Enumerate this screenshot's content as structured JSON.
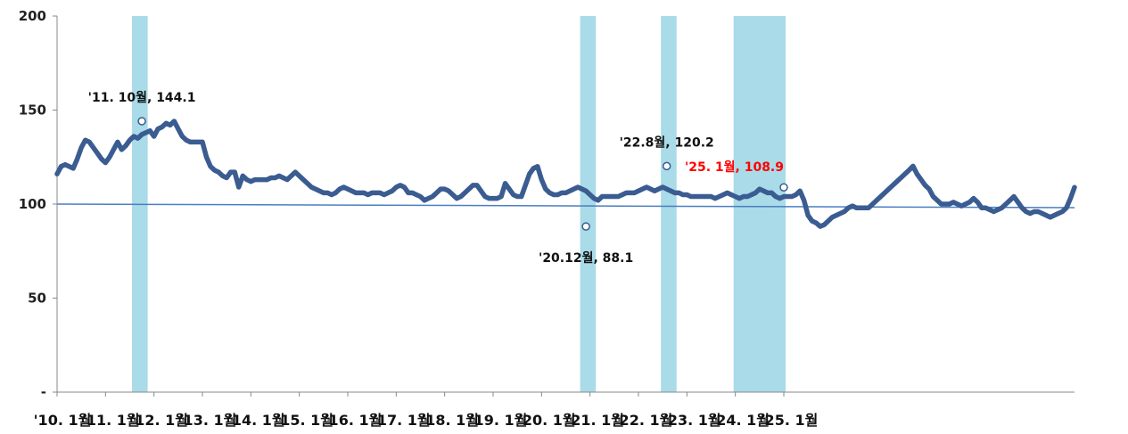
{
  "chart_data": {
    "type": "line",
    "title": "",
    "xlabel": "",
    "ylabel": "",
    "ylim": [
      0,
      200
    ],
    "y_ticks": [
      {
        "value": 0,
        "label": "-"
      },
      {
        "value": 50,
        "label": "50"
      },
      {
        "value": 100,
        "label": "100"
      },
      {
        "value": 150,
        "label": "150"
      },
      {
        "value": 200,
        "label": "200"
      }
    ],
    "x_tick_labels": [
      "'10. 1월",
      "'11. 1월",
      "'12. 1월",
      "'13. 1월",
      "'14. 1월",
      "'15. 1월",
      "'16. 1월",
      "'17. 1월",
      "'18. 1월",
      "'19. 1월",
      "'20. 1월",
      "'21. 1월",
      "'22. 1월",
      "'23. 1월",
      "'24. 1월",
      "'25. 1월"
    ],
    "reference_line": 100,
    "shaded_periods": [
      {
        "start": "2011-08",
        "end": "2011-11"
      },
      {
        "start": "2020-11",
        "end": "2021-02"
      },
      {
        "start": "2022-07",
        "end": "2022-10"
      },
      {
        "start": "2024-01",
        "end": "2025-01"
      }
    ],
    "colors": {
      "line": "#3a5c91",
      "shade": "#a9dbe8",
      "reference": "#4a7fc0",
      "highlight": "#ff0000"
    },
    "start_month": "2010-01",
    "series": [
      {
        "values": [
          116,
          120,
          121,
          120,
          119,
          124,
          130,
          134,
          133,
          130,
          127,
          124,
          122,
          125,
          129,
          133,
          129,
          131,
          134,
          136,
          135,
          137,
          138,
          139,
          136,
          140,
          141,
          143,
          142,
          144.1,
          140,
          136,
          134,
          133,
          133,
          133,
          133,
          125,
          120,
          118,
          117,
          115,
          114,
          117,
          117,
          109,
          115,
          113,
          112,
          113,
          113,
          113,
          113,
          114,
          114,
          115,
          114,
          113,
          115,
          117,
          115,
          113,
          111,
          109,
          108,
          107,
          106,
          106,
          105,
          106,
          108,
          109,
          108,
          107,
          106,
          106,
          106,
          105,
          106,
          106,
          106,
          105,
          106,
          107,
          109,
          110,
          109,
          106,
          106,
          105,
          104,
          102,
          103,
          104,
          106,
          108,
          108,
          107,
          105,
          103,
          104,
          106,
          108,
          110,
          110,
          107,
          104,
          103,
          103,
          103,
          104,
          111,
          108,
          105,
          104,
          104,
          110,
          116,
          119,
          120,
          113,
          108,
          106,
          105,
          105,
          106,
          106,
          107,
          108,
          109,
          108,
          107,
          105,
          103,
          102,
          104,
          104,
          104,
          104,
          104,
          105,
          106,
          106,
          106,
          107,
          108,
          109,
          108,
          107,
          108,
          109,
          108,
          107,
          106,
          106,
          105,
          105,
          104,
          104,
          104,
          104,
          104,
          104,
          103,
          104,
          105,
          106,
          105,
          104,
          103,
          104,
          104,
          105,
          106,
          108,
          107,
          106,
          106,
          104,
          103,
          104,
          104,
          104,
          105,
          107,
          102,
          94,
          91,
          90,
          88.1,
          89,
          91,
          93,
          94,
          95,
          96,
          98,
          99,
          98,
          98,
          98,
          98,
          100,
          102,
          104,
          106,
          108,
          110,
          112,
          114,
          116,
          118,
          120.2,
          116,
          113,
          110,
          108,
          104,
          102,
          100,
          100,
          100,
          101,
          100,
          99,
          100,
          101,
          103,
          101,
          98,
          98,
          97,
          96,
          97,
          98,
          100,
          102,
          104,
          101,
          98,
          96,
          95,
          96,
          96,
          95,
          94,
          93,
          94,
          95,
          96,
          98,
          103,
          108.9
        ]
      }
    ],
    "annotations": [
      {
        "month": "2011-10",
        "value": 144.1,
        "label": "'11. 10월, 144.1",
        "color": "#111111"
      },
      {
        "month": "2020-12",
        "value": 88.1,
        "label": "'20.12월, 88.1",
        "color": "#111111"
      },
      {
        "month": "2022-08",
        "value": 120.2,
        "label": "'22.8월, 120.2",
        "color": "#111111"
      },
      {
        "month": "2025-01",
        "value": 108.9,
        "label": "'25. 1월, 108.9",
        "color": "#ff0000"
      }
    ]
  }
}
